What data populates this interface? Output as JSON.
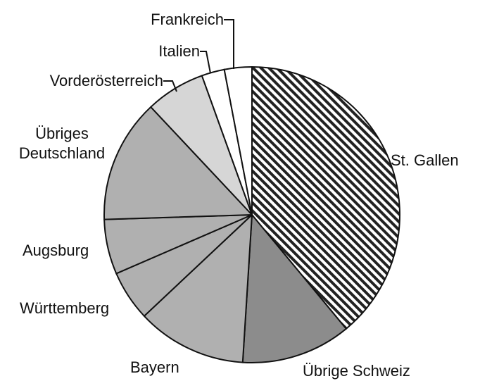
{
  "chart_data": {
    "type": "pie",
    "categories": [
      "St. Gallen",
      "Übrige Schweiz",
      "Bayern",
      "Württemberg",
      "Augsburg",
      "Übriges Deutschland",
      "Vorderösterreich",
      "Italien",
      "Frankreich"
    ],
    "values": [
      39,
      12,
      12,
      5.5,
      6,
      13.5,
      6.5,
      2.5,
      3
    ],
    "colors": [
      "#ffffff",
      "#8c8c8c",
      "#b0b0b0",
      "#b0b0b0",
      "#b0b0b0",
      "#b0b0b0",
      "#d6d6d6",
      "#ffffff",
      "#ffffff"
    ],
    "patterns": [
      "diagonal-stripes",
      "solid",
      "solid",
      "solid",
      "solid",
      "solid",
      "solid",
      "solid",
      "solid"
    ]
  }
}
